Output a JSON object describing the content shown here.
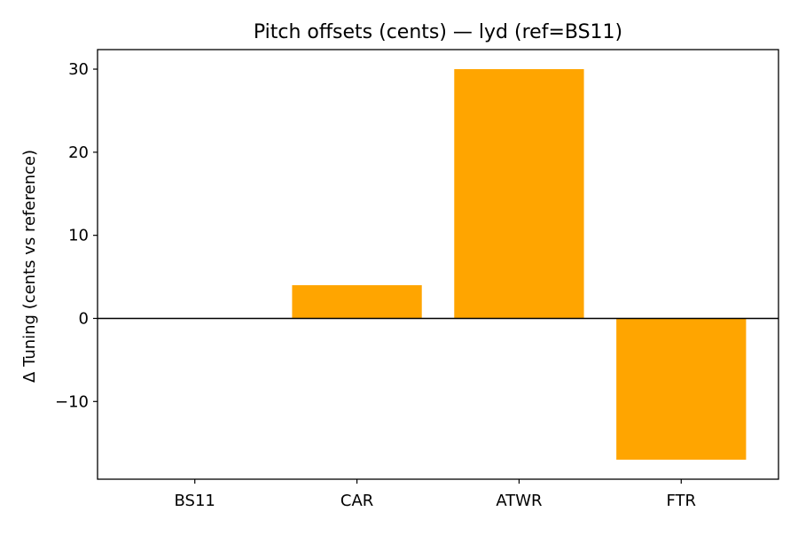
{
  "chart_data": {
    "type": "bar",
    "title": "Pitch offsets (cents) — lyd (ref=BS11)",
    "xlabel": "",
    "ylabel": "Δ Tuning (cents vs reference)",
    "categories": [
      "BS11",
      "CAR",
      "ATWR",
      "FTR"
    ],
    "series": [
      {
        "values": [
          0,
          4,
          30,
          -17
        ]
      }
    ],
    "ylim": [
      -19.35,
      32.35
    ],
    "yticks": [
      -10,
      0,
      10,
      20,
      30
    ],
    "ytick_labels": [
      "−10",
      "0",
      "10",
      "20",
      "30"
    ],
    "zero_line": true,
    "grid": false,
    "bar_color": "#ffa500",
    "axis_color": "#000000"
  }
}
